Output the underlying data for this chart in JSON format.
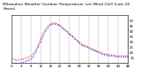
{
  "title": "Milwaukee Weather Outdoor Temperature (vs) Wind Chill (Last 24 Hours)",
  "bg_color": "#ffffff",
  "grid_color": "#888888",
  "temp_color": "#ff0000",
  "windchill_color": "#0000ff",
  "ylim": [
    10,
    55
  ],
  "xlim": [
    0,
    48
  ],
  "y_ticks": [
    15,
    20,
    25,
    30,
    35,
    40,
    45,
    50
  ],
  "x_ticks": [
    0,
    2,
    4,
    6,
    8,
    10,
    12,
    14,
    16,
    18,
    20,
    22,
    24,
    26,
    28,
    30,
    32,
    34,
    36,
    38,
    40,
    42,
    44,
    46,
    48
  ],
  "x_grid_ticks": [
    4,
    8,
    12,
    16,
    20,
    24,
    28,
    32,
    36,
    40,
    44,
    48
  ],
  "temp_values": [
    14,
    14,
    13,
    13,
    14,
    14,
    15,
    16,
    17,
    19,
    22,
    27,
    33,
    38,
    42,
    45,
    47,
    48,
    48,
    47,
    46,
    44,
    42,
    40,
    38,
    36,
    34,
    32,
    30,
    28,
    27,
    26,
    25,
    24,
    23,
    22,
    21,
    20,
    19,
    19,
    18,
    18,
    18,
    17,
    17,
    17,
    17,
    17,
    17
  ],
  "windchill_values": [
    10,
    10,
    10,
    10,
    10,
    11,
    12,
    13,
    14,
    16,
    20,
    25,
    30,
    35,
    40,
    43,
    46,
    47,
    47,
    46,
    45,
    43,
    41,
    39,
    37,
    35,
    33,
    31,
    29,
    27,
    26,
    25,
    24,
    23,
    22,
    21,
    20,
    19,
    18,
    18,
    17,
    17,
    17,
    16,
    16,
    16,
    16,
    16,
    16
  ],
  "title_fontsize": 3.2,
  "tick_fontsize": 2.8,
  "ytick_fontsize": 2.8,
  "dot_size": 0.8
}
